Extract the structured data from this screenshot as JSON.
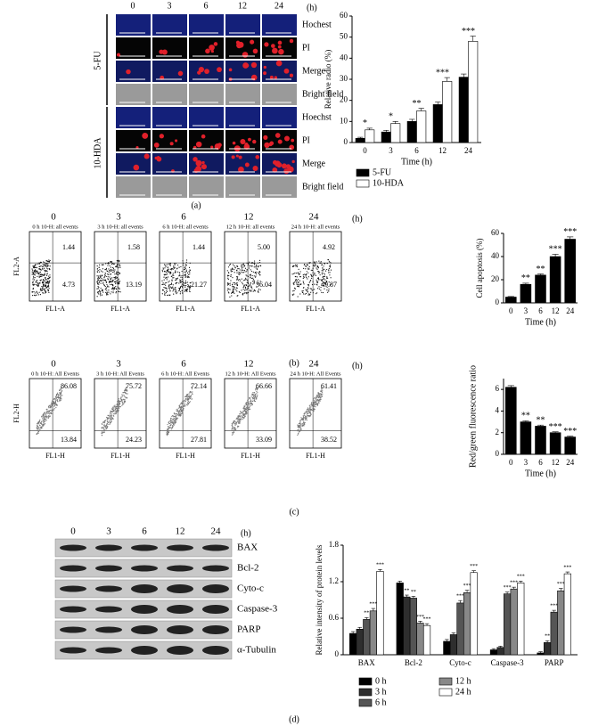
{
  "figure": {
    "panel_labels": [
      "(a)",
      "(b)",
      "(c)",
      "(d)"
    ],
    "time_unit": "(h)"
  },
  "microscopy": {
    "times": [
      "0",
      "3",
      "6",
      "12",
      "24"
    ],
    "groups": [
      {
        "name": "5-FU",
        "rows": [
          "Hochest",
          "PI",
          "Merge",
          "Bright field"
        ]
      },
      {
        "name": "10-HDA",
        "rows": [
          "Hoechst",
          "PI",
          "Merge",
          "Bright field"
        ]
      }
    ]
  },
  "flow_b": {
    "times": [
      "0",
      "3",
      "6",
      "12",
      "24"
    ],
    "ylabel": "FL2-A",
    "xlabel": "FL1-A",
    "plots": [
      {
        "title": "0 h 10-H: all events",
        "upper": "1.44",
        "lower": "4.73"
      },
      {
        "title": "3 h 10-H: all events",
        "upper": "1.58",
        "lower": "13.19"
      },
      {
        "title": "6 h 10-H: all events",
        "upper": "1.44",
        "lower": "21.27"
      },
      {
        "title": "12 h 10-H: all events",
        "upper": "5.00",
        "lower": "36.04"
      },
      {
        "title": "24 h 10-H: all events",
        "upper": "4.92",
        "lower": "49.87"
      }
    ]
  },
  "flow_c": {
    "times": [
      "0",
      "3",
      "6",
      "12",
      "24"
    ],
    "ylabel": "FL2-H",
    "xlabel": "FL1-H",
    "plots": [
      {
        "title": "0 h 10-H: All Events",
        "upper": "86.08",
        "lower": "13.84"
      },
      {
        "title": "3 h 10-H: All Events",
        "upper": "75.72",
        "lower": "24.23"
      },
      {
        "title": "6 h 10-H: All Events",
        "upper": "72.14",
        "lower": "27.81"
      },
      {
        "title": "12 h 10-H: All Events",
        "upper": "66.66",
        "lower": "33.09"
      },
      {
        "title": "24 h 10-H: All Events",
        "upper": "61.41",
        "lower": "38.52"
      }
    ]
  },
  "blot": {
    "times": [
      "0",
      "3",
      "6",
      "12",
      "24"
    ],
    "proteins": [
      "BAX",
      "Bcl-2",
      "Cyto-c",
      "Caspase-3",
      "PARP",
      "α-Tubulin"
    ]
  },
  "chart_data": [
    {
      "type": "bar",
      "ylabel": "Relative radio (%)",
      "xlabel": "Time (h)",
      "categories": [
        "0",
        "3",
        "6",
        "12",
        "24"
      ],
      "ylim": [
        0,
        60
      ],
      "yticks": [
        0,
        10,
        20,
        30,
        40,
        50,
        60
      ],
      "legend": "bottom",
      "series": [
        {
          "name": "5-FU",
          "color": "#000000",
          "values": [
            2,
            5,
            10,
            18,
            31
          ],
          "errors": [
            0.5,
            0.8,
            1,
            1.2,
            1.5
          ]
        },
        {
          "name": "10-HDA",
          "color": "#ffffff",
          "values": [
            6,
            9,
            15,
            29,
            48
          ],
          "errors": [
            0.8,
            1,
            1.2,
            1.8,
            2.5
          ],
          "annotations": [
            "*",
            "*",
            "**",
            "***",
            "***"
          ]
        }
      ]
    },
    {
      "type": "bar",
      "ylabel": "Cell apoptosis (%)",
      "xlabel": "Time (h)",
      "categories": [
        "0",
        "3",
        "6",
        "12",
        "24"
      ],
      "ylim": [
        0,
        60
      ],
      "yticks": [
        0,
        20,
        40,
        60
      ],
      "series": [
        {
          "color": "#000000",
          "values": [
            5,
            16,
            24,
            40,
            55
          ],
          "errors": [
            0.5,
            1,
            1,
            2,
            2
          ],
          "annotations": [
            null,
            "**",
            "**",
            "***",
            "***"
          ]
        }
      ]
    },
    {
      "type": "bar",
      "ylabel": "Red/green fluorescence ratio",
      "xlabel": "Time (h)",
      "categories": [
        "0",
        "3",
        "6",
        "12",
        "24"
      ],
      "ylim": [
        0,
        7
      ],
      "yticks": [
        0,
        2,
        4,
        6
      ],
      "series": [
        {
          "color": "#000000",
          "values": [
            6.2,
            3.0,
            2.6,
            2.0,
            1.6
          ],
          "errors": [
            0.15,
            0.1,
            0.1,
            0.08,
            0.08
          ],
          "annotations": [
            null,
            "**",
            "**",
            "***",
            "***"
          ]
        }
      ]
    },
    {
      "type": "bar",
      "ylabel": "Relative intensity of protein levels",
      "categories": [
        "BAX",
        "Bcl-2",
        "Cyto-c",
        "Caspase-3",
        "PARP"
      ],
      "ylim": [
        0,
        1.8
      ],
      "yticks": [
        0,
        0.6,
        1.2,
        1.8
      ],
      "legend": "bottom",
      "series": [
        {
          "name": "0 h",
          "color": "#000000",
          "values": [
            0.35,
            1.18,
            0.22,
            0.08,
            0.03
          ],
          "errors": [
            0.03,
            0.03,
            0.03,
            0.02,
            0.02
          ]
        },
        {
          "name": "3 h",
          "color": "#2e2e2e",
          "values": [
            0.42,
            0.95,
            0.33,
            0.12,
            0.2
          ],
          "errors": [
            0.03,
            0.03,
            0.03,
            0.02,
            0.03
          ],
          "annotations": [
            null,
            "**",
            null,
            null,
            "**"
          ]
        },
        {
          "name": "6 h",
          "color": "#555555",
          "values": [
            0.58,
            0.93,
            0.85,
            1.0,
            0.7
          ],
          "errors": [
            0.03,
            0.03,
            0.04,
            0.03,
            0.03
          ],
          "annotations": [
            "**",
            "**",
            "***",
            "***",
            "***"
          ]
        },
        {
          "name": "12 h",
          "color": "#888888",
          "values": [
            0.72,
            0.52,
            1.02,
            1.08,
            1.05
          ],
          "errors": [
            0.04,
            0.03,
            0.04,
            0.03,
            0.04
          ],
          "annotations": [
            "***",
            "***",
            "***",
            "***",
            "***"
          ]
        },
        {
          "name": "24 h",
          "color": "#ffffff",
          "values": [
            1.37,
            0.48,
            1.35,
            1.18,
            1.33
          ],
          "errors": [
            0.03,
            0.03,
            0.03,
            0.03,
            0.03
          ],
          "annotations": [
            "***",
            "***",
            "***",
            "***",
            "***"
          ]
        }
      ]
    }
  ]
}
